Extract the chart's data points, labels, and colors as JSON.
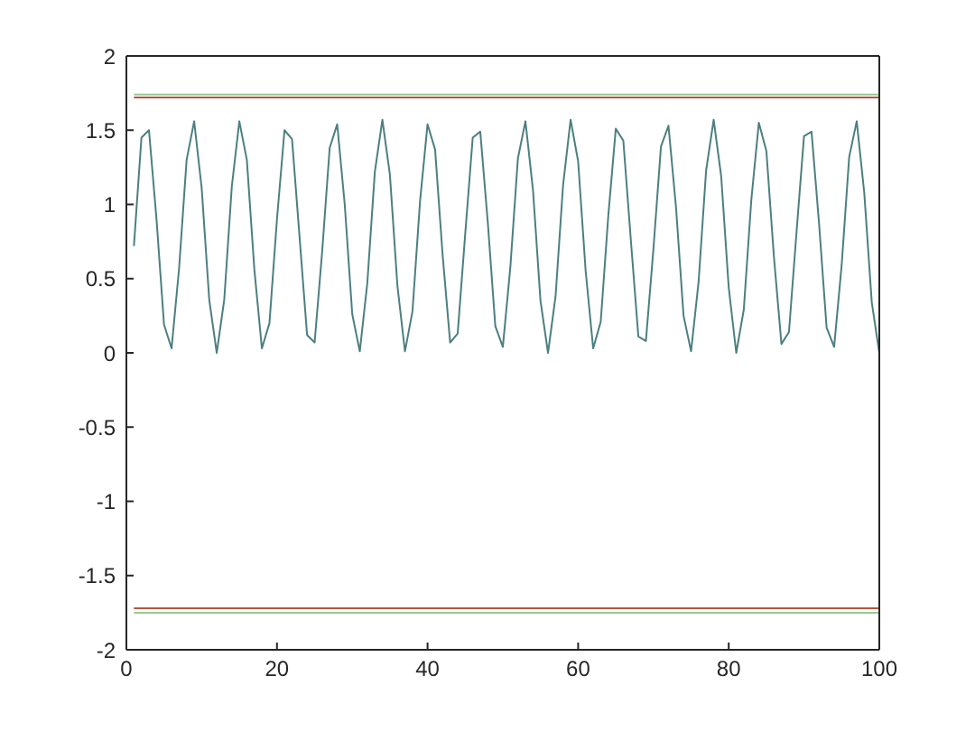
{
  "chart_data": {
    "type": "line",
    "xlim": [
      0,
      100
    ],
    "xticks": [
      0,
      20,
      40,
      60,
      80,
      100
    ],
    "ylim": [
      -2,
      2
    ],
    "yticks": [
      -2,
      -1.5,
      -1,
      -0.5,
      0,
      0.5,
      1,
      1.5,
      2
    ],
    "grid": false,
    "series": [
      {
        "color": "#4d7f80",
        "x": [
          1,
          2,
          3,
          4,
          5,
          6,
          7,
          8,
          9,
          10,
          11,
          12,
          13,
          14,
          15,
          16,
          17,
          18,
          19,
          20,
          21,
          22,
          23,
          24,
          25,
          26,
          27,
          28,
          29,
          30,
          31,
          32,
          33,
          34,
          35,
          36,
          37,
          38,
          39,
          40,
          41,
          42,
          43,
          44,
          45,
          46,
          47,
          48,
          49,
          50,
          51,
          52,
          53,
          54,
          55,
          56,
          57,
          58,
          59,
          60,
          61,
          62,
          63,
          64,
          65,
          66,
          67,
          68,
          69,
          70,
          71,
          72,
          73,
          74,
          75,
          76,
          77,
          78,
          79,
          80,
          81,
          82,
          83,
          84,
          85,
          86,
          87,
          88,
          89,
          90,
          91,
          92,
          93,
          94,
          95,
          96,
          97,
          98,
          99,
          100
        ],
        "values": [
          0.72,
          1.45,
          1.5,
          0.9,
          0.19,
          0.03,
          0.57,
          1.3,
          1.56,
          1.11,
          0.36,
          0,
          0.36,
          1.12,
          1.56,
          1.3,
          0.56,
          0.03,
          0.2,
          0.9,
          1.5,
          1.44,
          0.78,
          0.12,
          0.07,
          0.68,
          1.38,
          1.54,
          1,
          0.26,
          0.01,
          0.47,
          1.22,
          1.57,
          1.2,
          0.45,
          0.01,
          0.28,
          1.02,
          1.54,
          1.37,
          0.66,
          0.07,
          0.13,
          0.8,
          1.45,
          1.49,
          0.88,
          0.18,
          0.04,
          0.58,
          1.31,
          1.56,
          1.1,
          0.35,
          0,
          0.38,
          1.13,
          1.57,
          1.29,
          0.55,
          0.03,
          0.21,
          0.92,
          1.51,
          1.43,
          0.76,
          0.11,
          0.08,
          0.7,
          1.39,
          1.53,
          0.98,
          0.25,
          0.01,
          0.48,
          1.23,
          1.57,
          1.19,
          0.44,
          0,
          0.29,
          1.03,
          1.55,
          1.36,
          0.65,
          0.06,
          0.14,
          0.81,
          1.46,
          1.49,
          0.87,
          0.17,
          0.04,
          0.59,
          1.32,
          1.56,
          1.08,
          0.34,
          0
        ]
      },
      {
        "color": "#b5553a",
        "x": [
          1,
          100
        ],
        "values": [
          1.72,
          1.72
        ]
      },
      {
        "color": "#93c993",
        "x": [
          1,
          100
        ],
        "values": [
          1.74,
          1.74
        ]
      },
      {
        "color": "#b5553a",
        "x": [
          1,
          100
        ],
        "values": [
          -1.72,
          -1.72
        ]
      },
      {
        "color": "#93c993",
        "x": [
          1,
          100
        ],
        "values": [
          -1.75,
          -1.75
        ]
      }
    ]
  }
}
